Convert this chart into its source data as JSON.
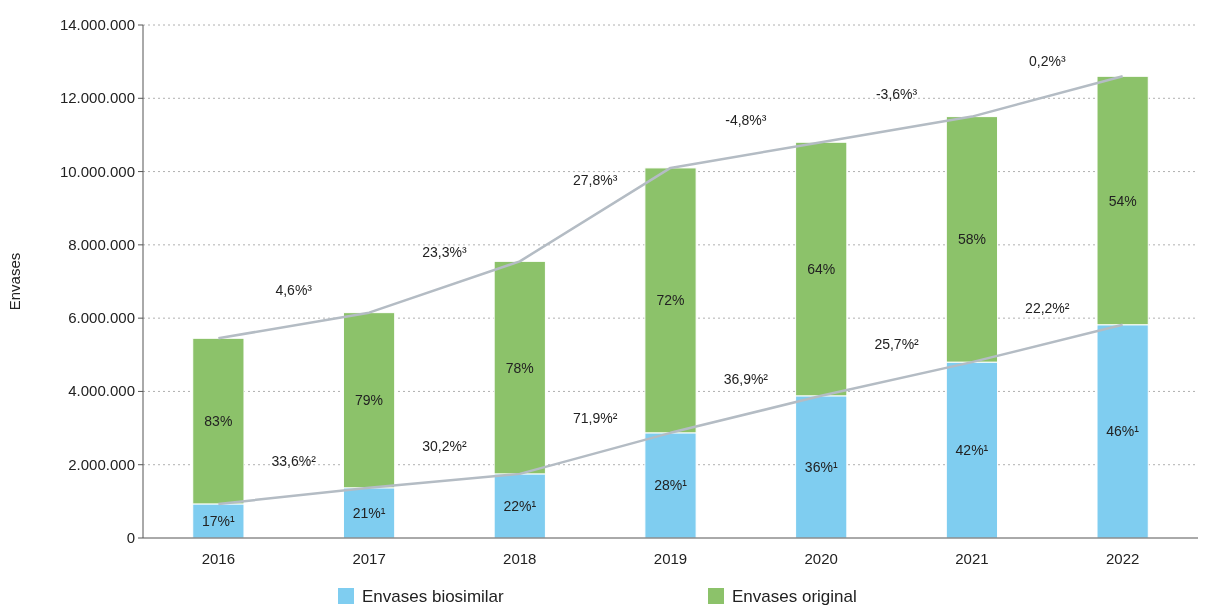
{
  "chart_data": {
    "type": "bar",
    "ylabel": "Envases",
    "stacked": true,
    "categories": [
      "2016",
      "2017",
      "2018",
      "2019",
      "2020",
      "2021",
      "2022"
    ],
    "series": [
      {
        "name": "Envases biosimilar",
        "color": "#7fcdf0",
        "values": [
          930000,
          1370000,
          1750000,
          2870000,
          3880000,
          4800000,
          5820000
        ]
      },
      {
        "name": "Envases original",
        "color": "#8cc26a",
        "values": [
          4520000,
          4780000,
          5800000,
          7230000,
          6920000,
          6700000,
          6780000
        ]
      },
      {
        "type": "line",
        "color": "#b4bcc4",
        "values": [
          930000,
          1370000,
          1750000,
          2870000,
          3880000,
          4800000,
          5820000
        ]
      },
      {
        "type": "line",
        "color": "#b4bcc4",
        "values": [
          5450000,
          6150000,
          7550000,
          10100000,
          10800000,
          11500000,
          12600000
        ]
      }
    ],
    "ylim": [
      0,
      14000000
    ],
    "yticks": [
      0,
      {
        "value": 2000000,
        "label": "2.000.000"
      },
      {
        "value": 4000000,
        "label": "4.000.000"
      },
      {
        "value": 6000000,
        "label": "6.000.000"
      },
      {
        "value": 8000000,
        "label": "8.000.000"
      },
      {
        "value": 10000000,
        "label": "10.000.000"
      },
      {
        "value": 12000000,
        "label": "12.000.000"
      },
      {
        "value": 14000000,
        "label": "14.000.000"
      }
    ],
    "grid": "y",
    "legend": "bottom",
    "annotations": [
      "17%¹",
      "21%¹",
      "22%¹",
      "28%¹",
      "36%¹",
      "42%¹",
      "46%¹",
      "83%",
      "79%",
      "78%",
      "72%",
      "64%",
      "58%",
      "54%",
      "33,6%²",
      "30,2%²",
      "71,9%²",
      "36,9%²",
      "25,7%²",
      "22,2%²",
      "4,6%³",
      "23,3%³",
      "27,8%³",
      "-4,8%³",
      "-3,6%³",
      "0,2%³"
    ]
  }
}
